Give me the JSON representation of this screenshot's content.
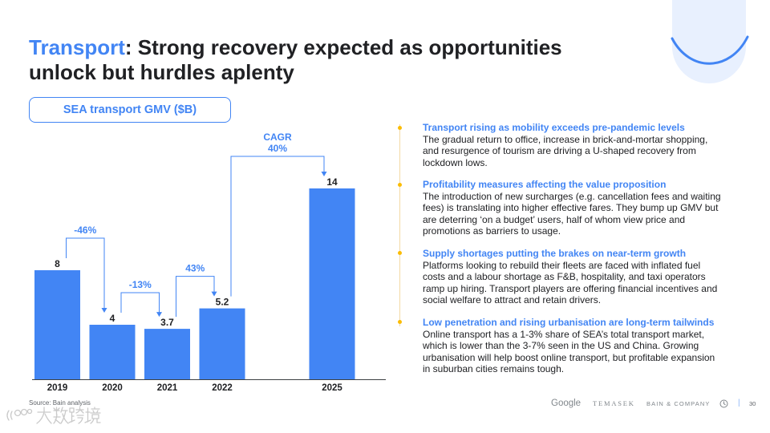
{
  "colors": {
    "accent": "#4285F4",
    "text": "#202124",
    "bullet": "#FBBC04",
    "timeline": "#F3D9A4",
    "muted": "#80868B",
    "decor_fill": "#E8F0FE"
  },
  "header": {
    "title_highlight": "Transport",
    "title_line1_rest": ": Strong recovery expected as opportunities",
    "title_line2": "unlock but hurdles aplenty"
  },
  "chart_data": {
    "type": "bar",
    "title": "SEA transport GMV ($B)",
    "categories": [
      "2019",
      "2020",
      "2021",
      "2022",
      "2025"
    ],
    "values": [
      8,
      4,
      3.7,
      5.2,
      14
    ],
    "ylim": [
      0,
      16
    ],
    "grid": false,
    "annotations": [
      {
        "from": "2019",
        "to": "2020",
        "label": "-46%"
      },
      {
        "from": "2020",
        "to": "2021",
        "label": "-13%"
      },
      {
        "from": "2021",
        "to": "2022",
        "label": "43%"
      },
      {
        "from": "2022",
        "to": "2025",
        "label_top": "CAGR",
        "label": "40%"
      }
    ]
  },
  "insights": [
    {
      "heading": "Transport rising as mobility exceeds pre-pandemic levels",
      "lines": [
        "The gradual return to office, increase in brick-and-mortar shopping,",
        "and resurgence of tourism are driving a U-shaped recovery from",
        "lockdown lows."
      ]
    },
    {
      "heading": "Profitability measures affecting the value proposition",
      "lines": [
        "The introduction of new surcharges (e.g. cancellation fees and waiting",
        "fees) is translating into higher effective fares. They bump up GMV but",
        "are deterring ‘on a budget’ users, half of whom view price and",
        "promotions as barriers to usage."
      ]
    },
    {
      "heading": "Supply shortages putting the brakes on near-term growth",
      "lines": [
        "Platforms looking to rebuild their fleets are faced with inflated fuel",
        "costs and a labour shortage as F&B, hospitality, and taxi operators",
        "ramp up hiring. Transport players are offering financial incentives and",
        "social welfare to attract and retain drivers."
      ]
    },
    {
      "heading": "Low penetration and rising urbanisation are long-term tailwinds",
      "lines": [
        "Online transport has a 1-3% share of SEA’s total transport market,",
        "which is lower than the 3-7% seen in the US and China. Growing",
        "urbanisation will help boost online transport, but profitable expansion",
        "in suburban cities remains tough."
      ]
    }
  ],
  "source": "Source: Bain analysis",
  "footer": {
    "logo_google": "Google",
    "logo_temasek": "TEMASEK",
    "logo_bain": "BAIN & COMPANY",
    "separator": "|",
    "page_number": "30"
  },
  "watermark": {
    "text": "大数跨境"
  }
}
